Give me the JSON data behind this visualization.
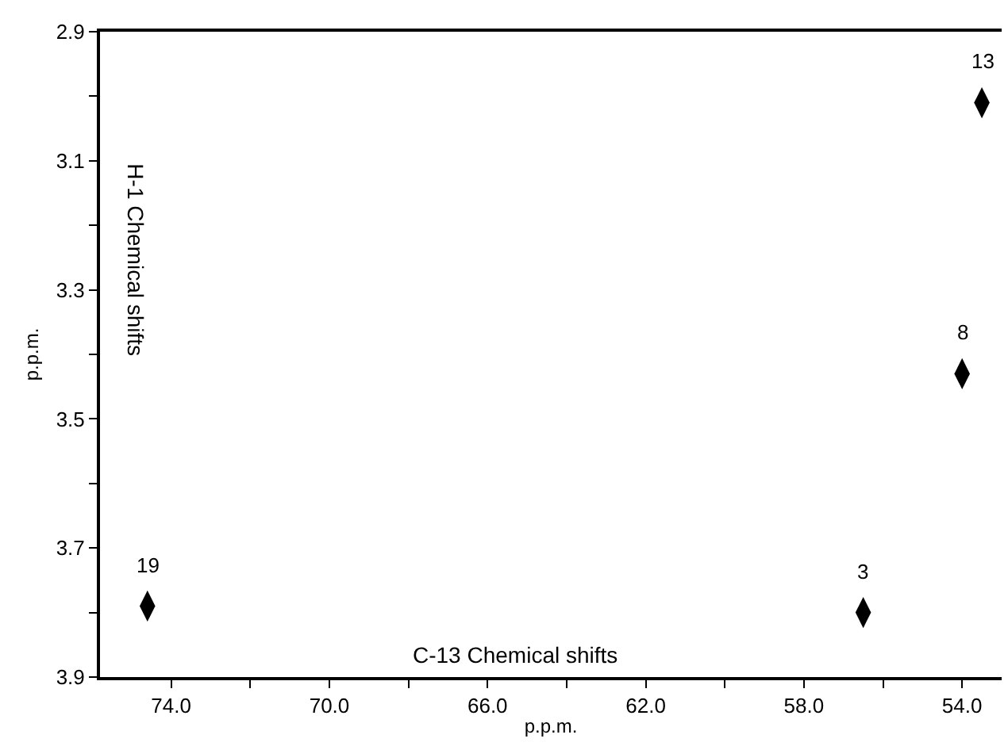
{
  "chart_data": {
    "type": "scatter",
    "xlabel": "p.p.m.",
    "ylabel": "p.p.m.",
    "x": [
      74.6,
      56.5,
      54.0,
      53.5
    ],
    "series": [
      {
        "color": "#000000",
        "values": [
          3.79,
          3.8,
          3.43,
          3.01
        ]
      }
    ],
    "marker": "diamond",
    "xlim": [
      75.8,
      53.0
    ],
    "ylim": [
      3.9,
      2.9
    ],
    "xticks": [
      {
        "value": 74,
        "label": "74.0"
      },
      {
        "value": 72,
        "label": null
      },
      {
        "value": 70,
        "label": "70.0"
      },
      {
        "value": 68,
        "label": null
      },
      {
        "value": 66,
        "label": "66.0"
      },
      {
        "value": 64,
        "label": null
      },
      {
        "value": 62,
        "label": "62.0"
      },
      {
        "value": 60,
        "label": null
      },
      {
        "value": 58,
        "label": "58.0"
      },
      {
        "value": 56,
        "label": null
      },
      {
        "value": 54,
        "label": "54.0"
      }
    ],
    "yticks": [
      2.9,
      {
        "value": 3.0,
        "label": null
      },
      3.1,
      {
        "value": 3.2,
        "label": null
      },
      3.3,
      {
        "value": 3.4,
        "label": null
      },
      3.5,
      {
        "value": 3.6,
        "label": null
      },
      3.7,
      {
        "value": 3.8,
        "label": null
      },
      3.9
    ],
    "annotations": [
      {
        "text": "19",
        "x": 74.6,
        "y": 3.79
      },
      {
        "text": "3",
        "x": 56.5,
        "y": 3.8
      },
      {
        "text": "8",
        "x": 54.0,
        "y": 3.43
      },
      {
        "text": "13",
        "x": 53.5,
        "y": 3.01
      },
      "H-1 Chemical shifts",
      "C-13 Chemical shifts"
    ]
  }
}
